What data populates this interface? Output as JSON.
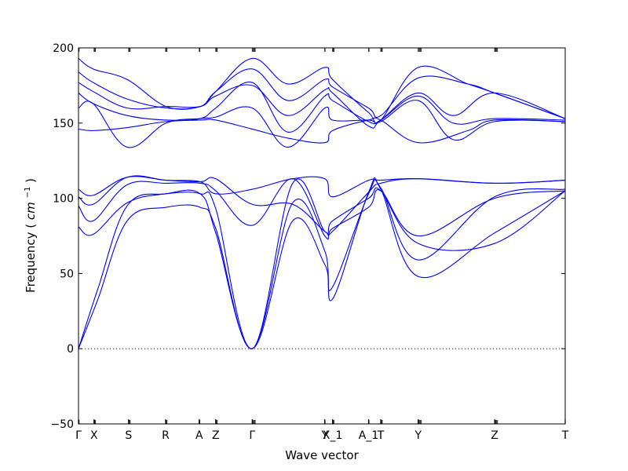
{
  "chart_data": {
    "type": "line",
    "title": "",
    "xlabel": "Wave vector",
    "ylabel": "Frequency",
    "ylabel_unit_base": "cm",
    "ylabel_unit_exp": "−1",
    "ylim": [
      -50,
      200
    ],
    "yticks": [
      -50,
      0,
      50,
      100,
      150,
      200
    ],
    "grid": false,
    "zero_line": true,
    "series_color": "#0000ff",
    "points": [
      {
        "label": "Γ",
        "x": 0.0
      },
      {
        "label": "X",
        "x": 0.032
      },
      {
        "label": "S",
        "x": 0.103
      },
      {
        "label": "R",
        "x": 0.179
      },
      {
        "label": "A",
        "x": 0.248
      },
      {
        "label": "Z",
        "x": 0.282
      },
      {
        "label": "Γ",
        "x": 0.357
      },
      {
        "label": "Y",
        "x": 0.506
      },
      {
        "label": "X_1",
        "x": 0.522
      },
      {
        "label": "A_1",
        "x": 0.596
      },
      {
        "label": "T",
        "x": 0.621
      },
      {
        "label": "Y",
        "x": 0.698
      },
      {
        "label": "Z",
        "x": 0.855
      },
      {
        "label": "T",
        "x": 1.0
      }
    ],
    "series": [
      {
        "x": [
          0.0,
          0.04,
          0.1,
          0.18,
          0.25,
          0.282,
          0.357,
          0.44,
          0.506,
          0.522,
          0.596,
          0.621,
          0.698,
          0.855,
          1.0
        ],
        "y": [
          0,
          40,
          95,
          103,
          103,
          77,
          0,
          85,
          56,
          41,
          103,
          107,
          59,
          101,
          106
        ]
      },
      {
        "x": [
          0.0,
          0.04,
          0.1,
          0.18,
          0.25,
          0.282,
          0.357,
          0.44,
          0.506,
          0.522,
          0.596,
          0.621,
          0.698,
          0.855,
          1.0
        ],
        "y": [
          0,
          33,
          85,
          94,
          94,
          80,
          0,
          97,
          65,
          33,
          104,
          106,
          48,
          77,
          105
        ]
      },
      {
        "x": [
          0.0,
          0.03,
          0.1,
          0.18,
          0.25,
          0.282,
          0.357,
          0.44,
          0.506,
          0.522,
          0.596,
          0.621,
          0.698,
          0.855,
          1.0
        ],
        "y": [
          81,
          76,
          97,
          103,
          103,
          93,
          0,
          110,
          78,
          85,
          100,
          105,
          70,
          70,
          105
        ]
      },
      {
        "x": [
          0.0,
          0.03,
          0.1,
          0.18,
          0.25,
          0.282,
          0.357,
          0.44,
          0.506,
          0.522,
          0.596,
          0.621,
          0.698,
          0.855,
          1.0
        ],
        "y": [
          95,
          85,
          109,
          110,
          110,
          105,
          82,
          113,
          75,
          80,
          94,
          105,
          75,
          100,
          105
        ]
      },
      {
        "x": [
          0.0,
          0.03,
          0.1,
          0.18,
          0.25,
          0.282,
          0.357,
          0.44,
          0.506,
          0.522,
          0.596,
          0.621,
          0.698,
          0.855,
          1.0
        ],
        "y": [
          101,
          96,
          114,
          112,
          111,
          113,
          96,
          96,
          78,
          78,
          104,
          110,
          113,
          110,
          112
        ]
      },
      {
        "x": [
          0.0,
          0.03,
          0.1,
          0.18,
          0.25,
          0.282,
          0.357,
          0.44,
          0.506,
          0.522,
          0.596,
          0.621,
          0.698,
          0.855,
          1.0
        ],
        "y": [
          106,
          102,
          114,
          112,
          111,
          103,
          106,
          113,
          113,
          101,
          112,
          112,
          113,
          110,
          112
        ]
      },
      {
        "x": [
          0.0,
          0.03,
          0.1,
          0.18,
          0.25,
          0.282,
          0.357,
          0.43,
          0.506,
          0.522,
          0.596,
          0.621,
          0.698,
          0.8,
          0.855,
          1.0
        ],
        "y": [
          146,
          145,
          147,
          151,
          152,
          152,
          146,
          140,
          137,
          145,
          152,
          152,
          137,
          145,
          152,
          151
        ]
      },
      {
        "x": [
          0.0,
          0.03,
          0.1,
          0.18,
          0.25,
          0.282,
          0.357,
          0.43,
          0.506,
          0.522,
          0.596,
          0.621,
          0.698,
          0.77,
          0.855,
          1.0
        ],
        "y": [
          160,
          163,
          134,
          150,
          153,
          154,
          160,
          134,
          160,
          152,
          152,
          151,
          165,
          139,
          151,
          151
        ]
      },
      {
        "x": [
          0.0,
          0.03,
          0.1,
          0.18,
          0.25,
          0.282,
          0.357,
          0.43,
          0.506,
          0.522,
          0.596,
          0.621,
          0.698,
          0.77,
          0.855,
          1.0
        ],
        "y": [
          170,
          163,
          155,
          152,
          153,
          160,
          177,
          144,
          168,
          165,
          151,
          152,
          168,
          150,
          153,
          152
        ]
      },
      {
        "x": [
          0.0,
          0.03,
          0.1,
          0.18,
          0.25,
          0.282,
          0.357,
          0.43,
          0.506,
          0.522,
          0.596,
          0.621,
          0.698,
          0.77,
          0.855,
          1.0
        ],
        "y": [
          177,
          171,
          160,
          161,
          161,
          168,
          175,
          155,
          172,
          170,
          148,
          152,
          170,
          155,
          170,
          153
        ]
      },
      {
        "x": [
          0.0,
          0.03,
          0.1,
          0.18,
          0.25,
          0.282,
          0.357,
          0.43,
          0.506,
          0.522,
          0.596,
          0.621,
          0.698,
          0.8,
          0.855,
          1.0
        ],
        "y": [
          184,
          177,
          166,
          160,
          161,
          171,
          186,
          165,
          179,
          174,
          160,
          155,
          180,
          176,
          170,
          153
        ]
      },
      {
        "x": [
          0.0,
          0.03,
          0.1,
          0.18,
          0.25,
          0.282,
          0.357,
          0.43,
          0.506,
          0.522,
          0.596,
          0.621,
          0.698,
          0.8,
          0.855,
          1.0
        ],
        "y": [
          193,
          186,
          179,
          161,
          161,
          171,
          193,
          176,
          187,
          179,
          157,
          152,
          187,
          176,
          170,
          153
        ]
      }
    ]
  }
}
